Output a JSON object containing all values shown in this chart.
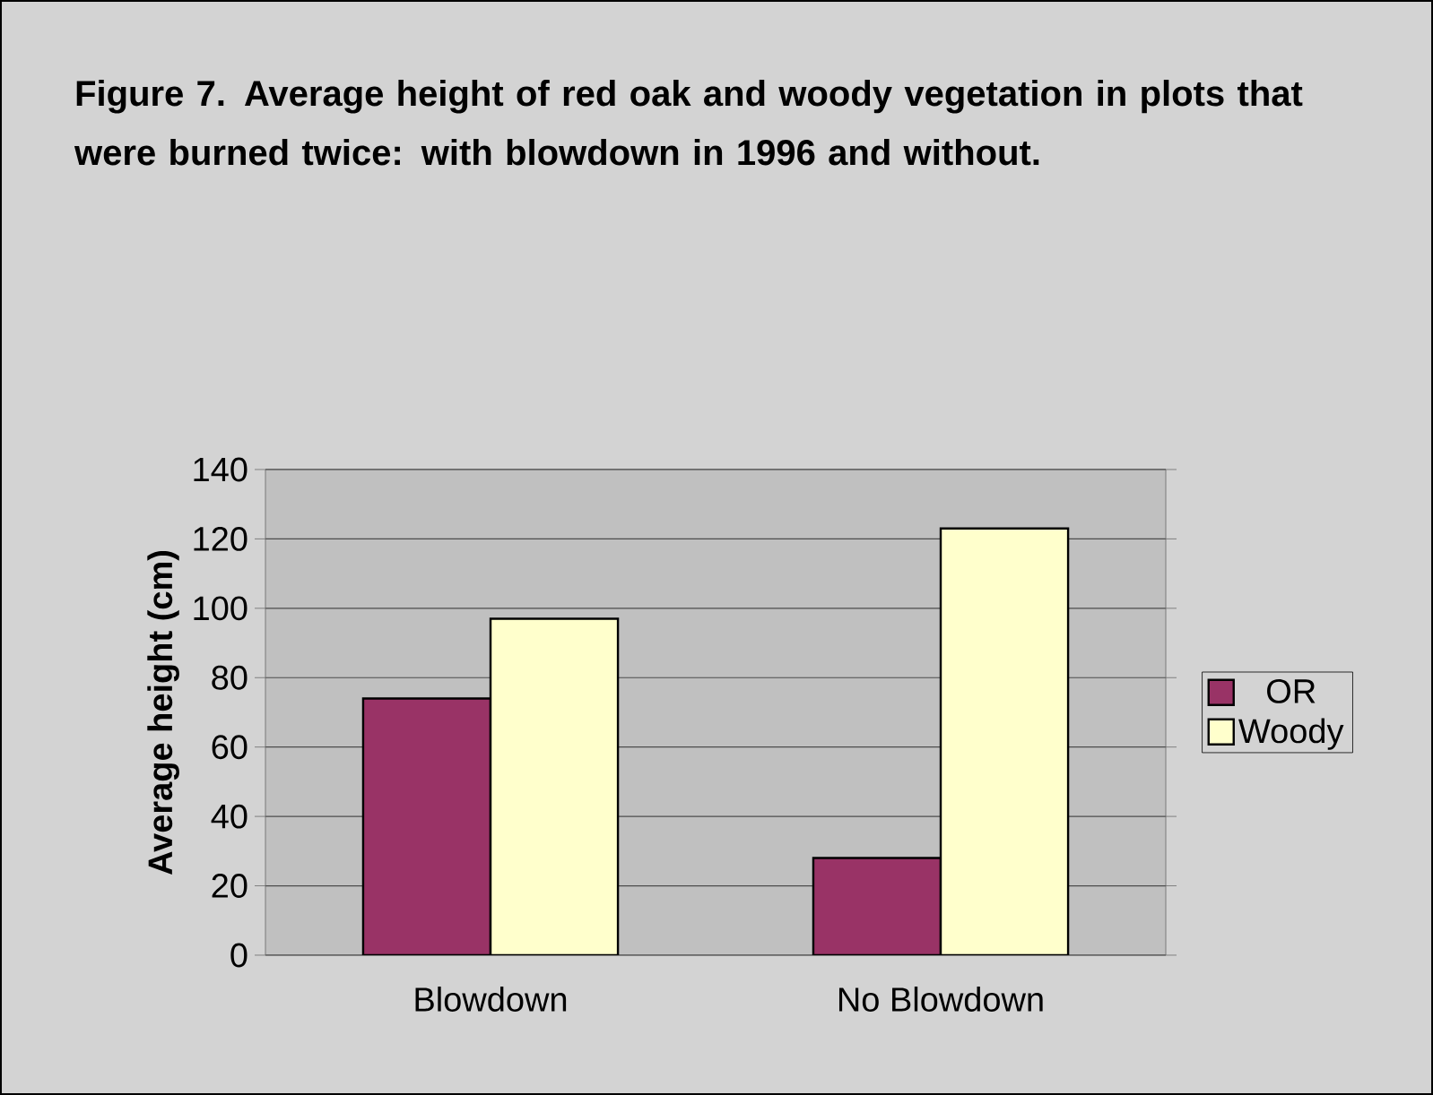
{
  "chart_data": {
    "type": "bar",
    "title": "Figure 7. Average height of red oak and woody vegetation in plots that were burned twice: with blowdown in 1996 and without.",
    "ylabel": "Average height (cm)",
    "categories": [
      "Blowdown",
      "No Blowdown"
    ],
    "series": [
      {
        "name": "OR",
        "color": "#993366",
        "values": [
          74,
          28
        ]
      },
      {
        "name": "Woody",
        "color": "#ffffcc",
        "values": [
          97,
          123
        ]
      }
    ],
    "ylim": [
      0,
      140
    ],
    "yticks": [
      0,
      20,
      40,
      60,
      80,
      100,
      120,
      140
    ],
    "grid": "y",
    "legend": "right"
  }
}
